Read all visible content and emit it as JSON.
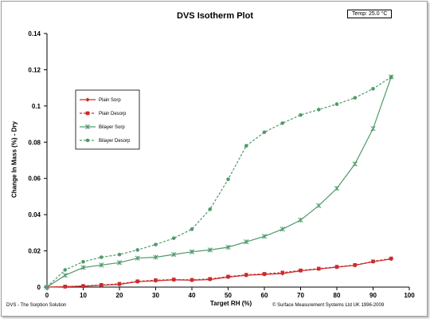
{
  "chart_data": {
    "type": "line",
    "title": "DVS Isotherm Plot",
    "temperature_badge": "Temp: 25.0 °C",
    "xlabel": "Target RH (%)",
    "ylabel": "Change In Mass (%) - Dry",
    "xlim": [
      0,
      100
    ],
    "ylim": [
      0,
      0.14
    ],
    "x_ticks": [
      "0",
      "10",
      "20",
      "30",
      "40",
      "50",
      "60",
      "70",
      "80",
      "90",
      "100"
    ],
    "y_ticks": [
      "0",
      "0.02",
      "0.04",
      "0.06",
      "0.08",
      "0.1",
      "0.12",
      "0.14"
    ],
    "legend_position": "left",
    "grid": false,
    "series": [
      {
        "name": "Plain Sorp",
        "color": "#cc2b2b",
        "line": "solid",
        "marker": "diamond",
        "x": [
          0,
          5,
          10,
          15,
          20,
          25,
          30,
          35,
          40,
          45,
          50,
          55,
          60,
          65,
          70,
          75,
          80,
          85,
          90,
          95
        ],
        "y": [
          0.0,
          0.0002,
          0.0005,
          0.001,
          0.0015,
          0.003,
          0.0035,
          0.004,
          0.0038,
          0.0042,
          0.0055,
          0.0065,
          0.007,
          0.0075,
          0.009,
          0.01,
          0.011,
          0.012,
          0.014,
          0.0155
        ]
      },
      {
        "name": "Plain Desorp",
        "color": "#cc2b2b",
        "line": "dashed",
        "marker": "square",
        "x": [
          0,
          5,
          10,
          15,
          20,
          25,
          30,
          35,
          40,
          45,
          50,
          55,
          60,
          65,
          70,
          75,
          80,
          85,
          90,
          95
        ],
        "y": [
          0.0,
          0.0003,
          0.0006,
          0.0012,
          0.0018,
          0.0032,
          0.0038,
          0.0042,
          0.004,
          0.0045,
          0.0058,
          0.0068,
          0.0073,
          0.008,
          0.0092,
          0.0102,
          0.0112,
          0.0122,
          0.0142,
          0.0158
        ]
      },
      {
        "name": "Bilayer Sorp",
        "color": "#4f9a6a",
        "line": "solid",
        "marker": "star",
        "x": [
          0,
          5,
          10,
          15,
          20,
          25,
          30,
          35,
          40,
          45,
          50,
          55,
          60,
          65,
          70,
          75,
          80,
          85,
          90,
          95
        ],
        "y": [
          0.0,
          0.0065,
          0.0108,
          0.0122,
          0.0135,
          0.016,
          0.0165,
          0.018,
          0.0195,
          0.0205,
          0.022,
          0.025,
          0.028,
          0.032,
          0.037,
          0.045,
          0.0545,
          0.068,
          0.0875,
          0.116
        ]
      },
      {
        "name": "Bilayer Desorp",
        "color": "#4f9a6a",
        "line": "dashed",
        "marker": "circle",
        "x": [
          0,
          5,
          10,
          15,
          20,
          25,
          30,
          35,
          40,
          45,
          50,
          55,
          60,
          65,
          70,
          75,
          80,
          85,
          90,
          95
        ],
        "y": [
          0.0,
          0.0095,
          0.014,
          0.0165,
          0.018,
          0.0205,
          0.0235,
          0.027,
          0.032,
          0.043,
          0.0595,
          0.078,
          0.0855,
          0.0905,
          0.095,
          0.098,
          0.101,
          0.1045,
          0.1095,
          0.116
        ]
      }
    ]
  },
  "footer": {
    "left": "DVS - The Sorption Solution",
    "right": "© Surface Measurement Systems Ltd UK 1996-2009"
  }
}
